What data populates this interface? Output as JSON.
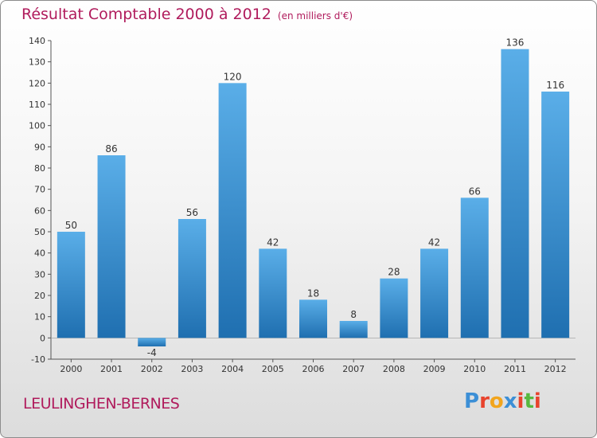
{
  "header": {
    "title": "Résultat Comptable 2000 à 2012",
    "subtitle": "(en milliers d'€)"
  },
  "footer": {
    "location": "LEULINGHEN-BERNES",
    "logo_text": "Proxiti",
    "logo_colors": [
      "#3c8fd6",
      "#e8432d",
      "#f2a51d",
      "#3c8fd6",
      "#e8432d",
      "#58b83f",
      "#e8432d"
    ]
  },
  "chart_data": {
    "type": "bar",
    "categories": [
      "2000",
      "2001",
      "2002",
      "2003",
      "2004",
      "2005",
      "2006",
      "2007",
      "2008",
      "2009",
      "2010",
      "2011",
      "2012"
    ],
    "values": [
      50,
      86,
      -4,
      56,
      120,
      42,
      18,
      8,
      28,
      42,
      66,
      136,
      116
    ],
    "data_labels": [
      "50",
      "86",
      "-4",
      "56",
      "120",
      "42",
      "18",
      "8",
      "28",
      "42",
      "66",
      "136",
      "116"
    ],
    "y_ticks": [
      -10,
      0,
      10,
      20,
      30,
      40,
      50,
      60,
      70,
      80,
      90,
      100,
      110,
      120,
      130,
      140
    ],
    "ylim": [
      -10,
      140
    ],
    "grid": false,
    "bar_color_top": "#5aaee8",
    "bar_color_bottom": "#1f6fb0"
  }
}
